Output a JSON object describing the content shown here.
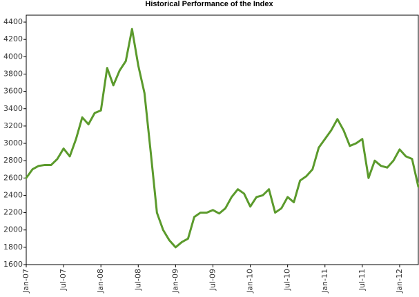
{
  "chart_data": {
    "type": "line",
    "title": "Historical Performance of the Index",
    "x": [
      "2007-01",
      "2007-02",
      "2007-03",
      "2007-04",
      "2007-05",
      "2007-06",
      "2007-07",
      "2007-08",
      "2007-09",
      "2007-10",
      "2007-11",
      "2007-12",
      "2008-01",
      "2008-02",
      "2008-03",
      "2008-04",
      "2008-05",
      "2008-06",
      "2008-07",
      "2008-08",
      "2008-09",
      "2008-10",
      "2008-11",
      "2008-12",
      "2009-01",
      "2009-02",
      "2009-03",
      "2009-04",
      "2009-05",
      "2009-06",
      "2009-07",
      "2009-08",
      "2009-09",
      "2009-10",
      "2009-11",
      "2009-12",
      "2010-01",
      "2010-02",
      "2010-03",
      "2010-04",
      "2010-05",
      "2010-06",
      "2010-07",
      "2010-08",
      "2010-09",
      "2010-10",
      "2010-11",
      "2010-12",
      "2011-01",
      "2011-02",
      "2011-03",
      "2011-04",
      "2011-05",
      "2011-06",
      "2011-07",
      "2011-08",
      "2011-09",
      "2011-10",
      "2011-11",
      "2011-12",
      "2012-01",
      "2012-02",
      "2012-03",
      "2012-04"
    ],
    "values": [
      2600,
      2700,
      2740,
      2750,
      2750,
      2820,
      2940,
      2850,
      3050,
      3300,
      3220,
      3350,
      3380,
      3870,
      3670,
      3840,
      3950,
      4320,
      3900,
      3580,
      2900,
      2200,
      2000,
      1880,
      1800,
      1860,
      1900,
      2150,
      2200,
      2200,
      2230,
      2190,
      2250,
      2380,
      2470,
      2420,
      2270,
      2380,
      2400,
      2470,
      2200,
      2250,
      2380,
      2320,
      2570,
      2620,
      2700,
      2950,
      3050,
      3150,
      3280,
      3150,
      2970,
      3000,
      3050,
      2600,
      2800,
      2740,
      2720,
      2800,
      2930,
      2850,
      2820,
      2500
    ],
    "color": "#5b9a2c",
    "xlim": [
      "2007-01",
      "2012-04"
    ],
    "xticks": [
      {
        "value": "2007-01",
        "label": "Jan-07"
      },
      {
        "value": "2007-07",
        "label": "Jul-07"
      },
      {
        "value": "2008-01",
        "label": "Jan-08"
      },
      {
        "value": "2008-07",
        "label": "Jul-08"
      },
      {
        "value": "2009-01",
        "label": "Jan-09"
      },
      {
        "value": "2009-07",
        "label": "Jul-09"
      },
      {
        "value": "2010-01",
        "label": "Jan-10"
      },
      {
        "value": "2010-07",
        "label": "Jul-10"
      },
      {
        "value": "2011-01",
        "label": "Jan-11"
      },
      {
        "value": "2011-07",
        "label": "Jul-11"
      },
      {
        "value": "2012-01",
        "label": "Jan-12"
      }
    ],
    "ylim": [
      1600,
      4480
    ],
    "yticks": [
      1600,
      1800,
      2000,
      2200,
      2400,
      2600,
      2800,
      3000,
      3200,
      3400,
      3600,
      3800,
      4000,
      4200,
      4400
    ]
  }
}
